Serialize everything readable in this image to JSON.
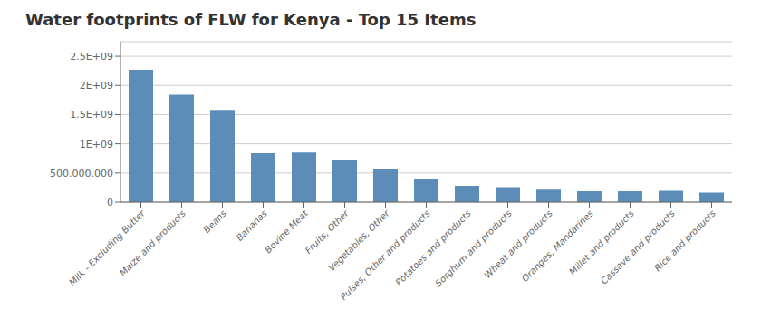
{
  "chart_data": {
    "type": "bar",
    "title": "Water footprints of FLW for Kenya - Top 15 Items",
    "categories": [
      "Milk - Excluding Butter",
      "Maize and products",
      "Beans",
      "Bananas",
      "Bovine Meat",
      "Fruits, Other",
      "Vegetables, Other",
      "Pulses, Other and products",
      "Potatoes and products",
      "Sorghum and products",
      "Wheat and products",
      "Oranges, Mandarines",
      "Millet and products",
      "Cassave and products",
      "Rice and products"
    ],
    "values": [
      2270000000,
      1840000000,
      1580000000,
      840000000,
      850000000,
      720000000,
      570000000,
      390000000,
      280000000,
      255000000,
      215000000,
      185000000,
      185000000,
      195000000,
      165000000
    ],
    "color": "#5B8DB8",
    "ylim": [
      0,
      2750000000
    ],
    "yticks": [
      0,
      {
        "value": 500000000,
        "label": "500.000.000"
      },
      {
        "value": 1000000000,
        "label": "1E+09"
      },
      {
        "value": 1500000000,
        "label": "1.5E+09"
      },
      {
        "value": 2000000000,
        "label": "2E+09"
      },
      {
        "value": 2500000000,
        "label": "2.5E+09"
      }
    ],
    "grid": true
  }
}
